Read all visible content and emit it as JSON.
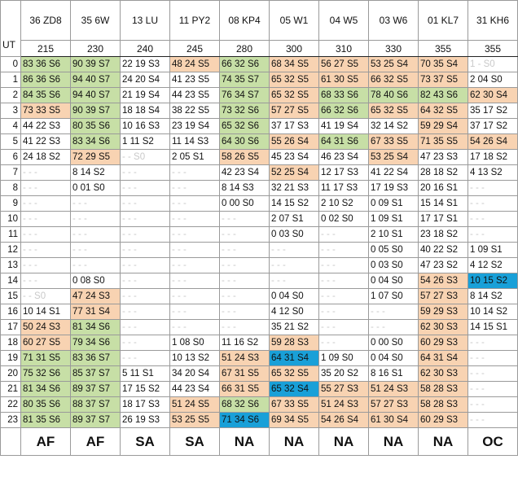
{
  "corner_label": "UT",
  "columns": [
    {
      "label": "36 ZD8",
      "freq": "215",
      "region": "AF"
    },
    {
      "label": "35 6W",
      "freq": "230",
      "region": "AF"
    },
    {
      "label": "13 LU",
      "freq": "240",
      "region": "SA"
    },
    {
      "label": "11 PY2",
      "freq": "245",
      "region": "SA"
    },
    {
      "label": "08 KP4",
      "freq": "280",
      "region": "NA"
    },
    {
      "label": "05 W1",
      "freq": "300",
      "region": "NA"
    },
    {
      "label": "04 W5",
      "freq": "310",
      "region": "NA"
    },
    {
      "label": "03 W6",
      "freq": "330",
      "region": "NA"
    },
    {
      "label": "01 KL7",
      "freq": "355",
      "region": "NA"
    },
    {
      "label": "31 KH6",
      "freq": "355",
      "region": "OC"
    }
  ],
  "legend_colors": {
    "white": "#ffffff",
    "green": "#c7dfa6",
    "orange": "#f8d3b2",
    "blue": "#19a0d8"
  },
  "rows": [
    {
      "ut": "0",
      "cells": [
        [
          "83 36 S6",
          1
        ],
        [
          "90 39 S7",
          1
        ],
        [
          "22 19 S3",
          0
        ],
        [
          "48 24 S5",
          2
        ],
        [
          "66 32 S6",
          1
        ],
        [
          "68 34 S5",
          2
        ],
        [
          "56 27 S5",
          2
        ],
        [
          "53 25 S4",
          2
        ],
        [
          "70 35 S4",
          2
        ],
        [
          "1 - S0",
          4
        ]
      ]
    },
    {
      "ut": "1",
      "cells": [
        [
          "86 36 S6",
          1
        ],
        [
          "94 40 S7",
          1
        ],
        [
          "24 20 S4",
          0
        ],
        [
          "41 23 S5",
          0
        ],
        [
          "74 35 S7",
          1
        ],
        [
          "65 32 S5",
          2
        ],
        [
          "61 30 S5",
          2
        ],
        [
          "66 32 S5",
          2
        ],
        [
          "73 37 S5",
          2
        ],
        [
          "2 04 S0",
          0
        ]
      ]
    },
    {
      "ut": "2",
      "cells": [
        [
          "84 35 S6",
          1
        ],
        [
          "94 40 S7",
          1
        ],
        [
          "21 19 S4",
          0
        ],
        [
          "44 23 S5",
          0
        ],
        [
          "76 34 S7",
          1
        ],
        [
          "65 32 S5",
          2
        ],
        [
          "68 33 S6",
          1
        ],
        [
          "78 40 S6",
          1
        ],
        [
          "82 43 S6",
          1
        ],
        [
          "62 30 S4",
          2
        ]
      ]
    },
    {
      "ut": "3",
      "cells": [
        [
          "73 33 S5",
          2
        ],
        [
          "90 39 S7",
          1
        ],
        [
          "18 18 S4",
          0
        ],
        [
          "38 22 S5",
          0
        ],
        [
          "73 32 S6",
          1
        ],
        [
          "57 27 S5",
          2
        ],
        [
          "66 32 S6",
          1
        ],
        [
          "65 32 S5",
          2
        ],
        [
          "64 32 S5",
          2
        ],
        [
          "35 17 S2",
          0
        ]
      ]
    },
    {
      "ut": "4",
      "cells": [
        [
          "44 22 S3",
          0
        ],
        [
          "80 35 S6",
          1
        ],
        [
          "10 16 S3",
          0
        ],
        [
          "23 19 S4",
          0
        ],
        [
          "65 32 S6",
          1
        ],
        [
          "37 17 S3",
          0
        ],
        [
          "41 19 S4",
          0
        ],
        [
          "32 14 S2",
          0
        ],
        [
          "59 29 S4",
          2
        ],
        [
          "37 17 S2",
          0
        ]
      ]
    },
    {
      "ut": "5",
      "cells": [
        [
          "41 22 S3",
          0
        ],
        [
          "83 34 S6",
          1
        ],
        [
          "1 11 S2",
          0
        ],
        [
          "11 14 S3",
          0
        ],
        [
          "64 30 S6",
          1
        ],
        [
          "55 26 S4",
          2
        ],
        [
          "64 31 S6",
          1
        ],
        [
          "67 33 S5",
          2
        ],
        [
          "71 35 S5",
          2
        ],
        [
          "54 26 S4",
          2
        ]
      ]
    },
    {
      "ut": "6",
      "cells": [
        [
          "24 18 S2",
          0
        ],
        [
          "72 29 S5",
          2
        ],
        [
          "- - S0",
          4
        ],
        [
          "2 05 S1",
          0
        ],
        [
          "58 26 S5",
          2
        ],
        [
          "45 23 S4",
          0
        ],
        [
          "46 23 S4",
          0
        ],
        [
          "53 25 S4",
          2
        ],
        [
          "47 23 S3",
          0
        ],
        [
          "17 18 S2",
          0
        ]
      ]
    },
    {
      "ut": "7",
      "cells": [
        [
          "- - -",
          3
        ],
        [
          "8 14 S2",
          0
        ],
        [
          "- - -",
          3
        ],
        [
          "- - -",
          3
        ],
        [
          "42 23 S4",
          0
        ],
        [
          "52 25 S4",
          2
        ],
        [
          "12 17 S3",
          0
        ],
        [
          "41 22 S4",
          0
        ],
        [
          "28 18 S2",
          0
        ],
        [
          "4 13 S2",
          0
        ]
      ]
    },
    {
      "ut": "8",
      "cells": [
        [
          "- - -",
          3
        ],
        [
          "0 01 S0",
          0
        ],
        [
          "- - -",
          3
        ],
        [
          "- - -",
          3
        ],
        [
          "8 14 S3",
          0
        ],
        [
          "32 21 S3",
          0
        ],
        [
          "11 17 S3",
          0
        ],
        [
          "17 19 S3",
          0
        ],
        [
          "20 16 S1",
          0
        ],
        [
          "- - -",
          3
        ]
      ]
    },
    {
      "ut": "9",
      "cells": [
        [
          "- - -",
          3
        ],
        [
          "- - -",
          3
        ],
        [
          "- - -",
          3
        ],
        [
          "- - -",
          3
        ],
        [
          "0 00 S0",
          0
        ],
        [
          "14 15 S2",
          0
        ],
        [
          "2 10 S2",
          0
        ],
        [
          "0 09 S1",
          0
        ],
        [
          "15 14 S1",
          0
        ],
        [
          "- - -",
          3
        ]
      ]
    },
    {
      "ut": "10",
      "cells": [
        [
          "- - -",
          3
        ],
        [
          "- - -",
          3
        ],
        [
          "- - -",
          3
        ],
        [
          "- - -",
          3
        ],
        [
          "- - -",
          3
        ],
        [
          "2 07 S1",
          0
        ],
        [
          "0 02 S0",
          0
        ],
        [
          "1 09 S1",
          0
        ],
        [
          "17 17 S1",
          0
        ],
        [
          "- - -",
          3
        ]
      ]
    },
    {
      "ut": "11",
      "cells": [
        [
          "- - -",
          3
        ],
        [
          "- - -",
          3
        ],
        [
          "- - -",
          3
        ],
        [
          "- - -",
          3
        ],
        [
          "- - -",
          3
        ],
        [
          "0 03 S0",
          0
        ],
        [
          "- - -",
          3
        ],
        [
          "2 10 S1",
          0
        ],
        [
          "23 18 S2",
          0
        ],
        [
          "- - -",
          3
        ]
      ]
    },
    {
      "ut": "12",
      "cells": [
        [
          "- - -",
          3
        ],
        [
          "- - -",
          3
        ],
        [
          "- - -",
          3
        ],
        [
          "- - -",
          3
        ],
        [
          "- - -",
          3
        ],
        [
          "- - -",
          3
        ],
        [
          "- - -",
          3
        ],
        [
          "0 05 S0",
          0
        ],
        [
          "40 22 S2",
          0
        ],
        [
          "1 09 S1",
          0
        ]
      ]
    },
    {
      "ut": "13",
      "cells": [
        [
          "- - -",
          3
        ],
        [
          "- - -",
          3
        ],
        [
          "- - -",
          3
        ],
        [
          "- - -",
          3
        ],
        [
          "- - -",
          3
        ],
        [
          "- - -",
          3
        ],
        [
          "- - -",
          3
        ],
        [
          "0 03 S0",
          0
        ],
        [
          "47 23 S2",
          0
        ],
        [
          "4 12 S2",
          0
        ]
      ]
    },
    {
      "ut": "14",
      "cells": [
        [
          "- - -",
          3
        ],
        [
          "0 08 S0",
          0
        ],
        [
          "- - -",
          3
        ],
        [
          "- - -",
          3
        ],
        [
          "- - -",
          3
        ],
        [
          "- - -",
          3
        ],
        [
          "- - -",
          3
        ],
        [
          "0 04 S0",
          0
        ],
        [
          "54 26 S3",
          2
        ],
        [
          "10 15 S2",
          5
        ]
      ]
    },
    {
      "ut": "15",
      "cells": [
        [
          "- - S0",
          4
        ],
        [
          "47 24 S3",
          2
        ],
        [
          "- - -",
          3
        ],
        [
          "- - -",
          3
        ],
        [
          "- - -",
          3
        ],
        [
          "0 04 S0",
          0
        ],
        [
          "- - -",
          3
        ],
        [
          "1 07 S0",
          0
        ],
        [
          "57 27 S3",
          2
        ],
        [
          "8 14 S2",
          0
        ]
      ]
    },
    {
      "ut": "16",
      "cells": [
        [
          "10 14 S1",
          0
        ],
        [
          "77 31 S4",
          2
        ],
        [
          "- - -",
          3
        ],
        [
          "- - -",
          3
        ],
        [
          "- - -",
          3
        ],
        [
          "4 12 S0",
          0
        ],
        [
          "- - -",
          3
        ],
        [
          "- - -",
          3
        ],
        [
          "59 29 S3",
          2
        ],
        [
          "10 14 S2",
          0
        ]
      ]
    },
    {
      "ut": "17",
      "cells": [
        [
          "50 24 S3",
          2
        ],
        [
          "81 34 S6",
          1
        ],
        [
          "- - -",
          3
        ],
        [
          "- - -",
          3
        ],
        [
          "- - -",
          3
        ],
        [
          "35 21 S2",
          0
        ],
        [
          "- - -",
          3
        ],
        [
          "- - -",
          3
        ],
        [
          "62 30 S3",
          2
        ],
        [
          "14 15 S1",
          0
        ]
      ]
    },
    {
      "ut": "18",
      "cells": [
        [
          "60 27 S5",
          2
        ],
        [
          "79 34 S6",
          1
        ],
        [
          "- - -",
          3
        ],
        [
          "1 08 S0",
          0
        ],
        [
          "11 16 S2",
          0
        ],
        [
          "59 28 S3",
          2
        ],
        [
          "- - -",
          3
        ],
        [
          "0 00 S0",
          0
        ],
        [
          "60 29 S3",
          2
        ],
        [
          "- - -",
          3
        ]
      ]
    },
    {
      "ut": "19",
      "cells": [
        [
          "71 31 S5",
          1
        ],
        [
          "83 36 S7",
          1
        ],
        [
          "- - -",
          3
        ],
        [
          "10 13 S2",
          0
        ],
        [
          "51 24 S3",
          2
        ],
        [
          "64 31 S4",
          5
        ],
        [
          "1 09 S0",
          0
        ],
        [
          "0 04 S0",
          0
        ],
        [
          "64 31 S4",
          2
        ],
        [
          "- - -",
          3
        ]
      ]
    },
    {
      "ut": "20",
      "cells": [
        [
          "75 32 S6",
          1
        ],
        [
          "85 37 S7",
          1
        ],
        [
          "5 11 S1",
          0
        ],
        [
          "34 20 S4",
          0
        ],
        [
          "67 31 S5",
          2
        ],
        [
          "65 32 S5",
          2
        ],
        [
          "35 20 S2",
          0
        ],
        [
          "8 16 S1",
          0
        ],
        [
          "62 30 S3",
          2
        ],
        [
          "- - -",
          3
        ]
      ]
    },
    {
      "ut": "21",
      "cells": [
        [
          "81 34 S6",
          1
        ],
        [
          "89 37 S7",
          1
        ],
        [
          "17 15 S2",
          0
        ],
        [
          "44 23 S4",
          0
        ],
        [
          "66 31 S5",
          2
        ],
        [
          "65 32 S4",
          5
        ],
        [
          "55 27 S3",
          2
        ],
        [
          "51 24 S3",
          2
        ],
        [
          "58 28 S3",
          2
        ],
        [
          "- - -",
          3
        ]
      ]
    },
    {
      "ut": "22",
      "cells": [
        [
          "80 35 S6",
          1
        ],
        [
          "88 37 S7",
          1
        ],
        [
          "18 17 S3",
          0
        ],
        [
          "51 24 S5",
          2
        ],
        [
          "68 32 S6",
          1
        ],
        [
          "67 33 S5",
          2
        ],
        [
          "51 24 S3",
          2
        ],
        [
          "57 27 S3",
          2
        ],
        [
          "58 28 S3",
          2
        ],
        [
          "- - -",
          3
        ]
      ]
    },
    {
      "ut": "23",
      "cells": [
        [
          "81 35 S6",
          1
        ],
        [
          "89 37 S7",
          1
        ],
        [
          "26 19 S3",
          0
        ],
        [
          "53 25 S5",
          2
        ],
        [
          "71 34 S6",
          5
        ],
        [
          "69 34 S5",
          2
        ],
        [
          "54 26 S4",
          2
        ],
        [
          "61 30 S4",
          2
        ],
        [
          "60 29 S3",
          2
        ],
        [
          "- - -",
          3
        ]
      ]
    }
  ]
}
